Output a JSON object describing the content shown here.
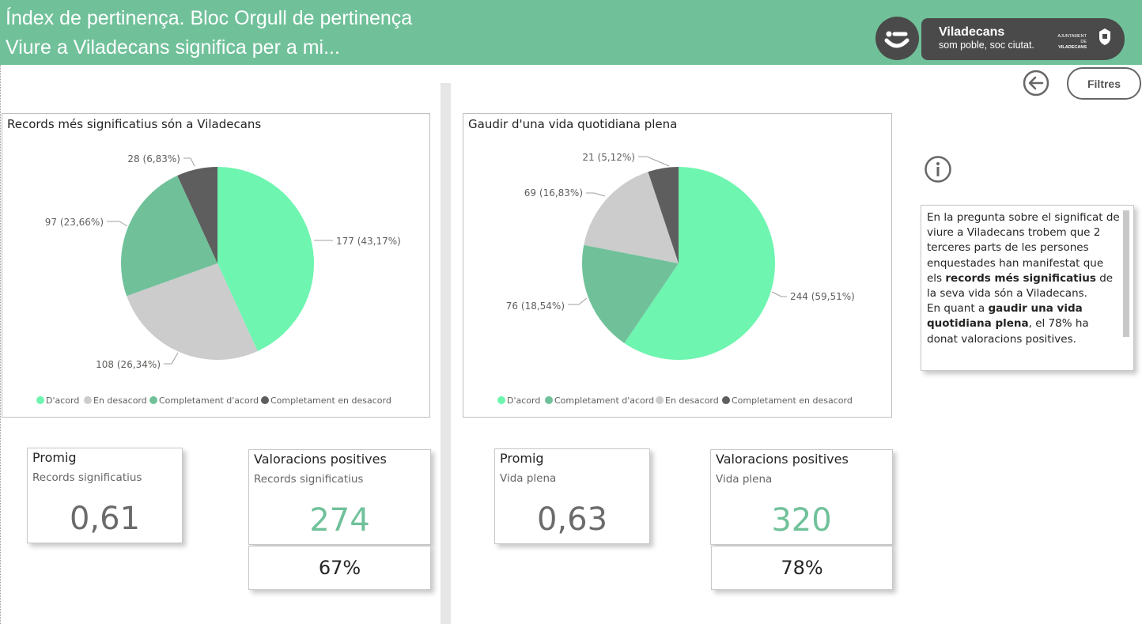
{
  "header": {
    "title_line1": "Índex de pertinença. Bloc Orgull de pertinença",
    "title_line2": "Viure a Viladecans significa per a mi...",
    "logo": {
      "brand": "Viladecans",
      "tagline": "som poble, soc ciutat.",
      "ajuntament_line1": "AJUNTAMENT DE",
      "ajuntament_line2": "VILADECANS"
    }
  },
  "toolbar": {
    "back_icon": "arrow-left-circle-icon",
    "filters_label": "Filtres"
  },
  "colors": {
    "header": "#70c19a",
    "dacord": "#6ef5b0",
    "en_desacord": "#cccccc",
    "completament_dacord": "#70c19a",
    "completament_en_desacord": "#5e5e5e"
  },
  "chart_data": [
    {
      "type": "pie",
      "title": "Records més significatius són a Viladecans",
      "slices": [
        {
          "name": "D'acord",
          "value": 177,
          "label": "177 (43,17%)",
          "color": "#6ef5b0"
        },
        {
          "name": "En desacord",
          "value": 108,
          "label": "108 (26,34%)",
          "color": "#cccccc"
        },
        {
          "name": "Completament d'acord",
          "value": 97,
          "label": "97 (23,66%)",
          "color": "#70c19a"
        },
        {
          "name": "Completament en desacord",
          "value": 28,
          "label": "28 (6,83%)",
          "color": "#5e5e5e"
        }
      ],
      "legend": [
        "D'acord",
        "En desacord",
        "Completament d'acord",
        "Completament en desacord"
      ],
      "legend_position": "bottom-center"
    },
    {
      "type": "pie",
      "title": "Gaudir d'una vida quotidiana plena",
      "slices": [
        {
          "name": "D'acord",
          "value": 244,
          "label": "244 (59,51%)",
          "color": "#6ef5b0"
        },
        {
          "name": "Completament d'acord",
          "value": 76,
          "label": "76 (18,54%)",
          "color": "#70c19a"
        },
        {
          "name": "En desacord",
          "value": 69,
          "label": "69 (16,83%)",
          "color": "#cccccc"
        },
        {
          "name": "Completament en desacord",
          "value": 21,
          "label": "21 (5,12%)",
          "color": "#5e5e5e"
        }
      ],
      "legend": [
        "D'acord",
        "Completament d'acord",
        "En desacord",
        "Completament en desacord"
      ],
      "legend_position": "bottom-center"
    }
  ],
  "cards": {
    "left_avg": {
      "title": "Promig",
      "subtitle": "Records significatius",
      "value": "0,61"
    },
    "left_pos": {
      "title": "Valoracions positives",
      "subtitle": "Records significatius",
      "value": "274",
      "pct": "67%"
    },
    "right_avg": {
      "title": "Promig",
      "subtitle": "Vida plena",
      "value": "0,63"
    },
    "right_pos": {
      "title": "Valoracions positives",
      "subtitle": "Vida plena",
      "value": "320",
      "pct": "78%"
    }
  },
  "info": {
    "icon": "info-circle-icon",
    "t1": "En la pregunta sobre el significat de viure a Viladecans trobem que 2 terceres parts de les persones enquestades han manifestat que els ",
    "b1": "records més significatius",
    "t2": " de la seva vida són a Viladecans.",
    "t3": "En quant a ",
    "b2": "gaudir una vida quotidiana plena",
    "t4": ", el 78% ha donat valoracions positives."
  }
}
